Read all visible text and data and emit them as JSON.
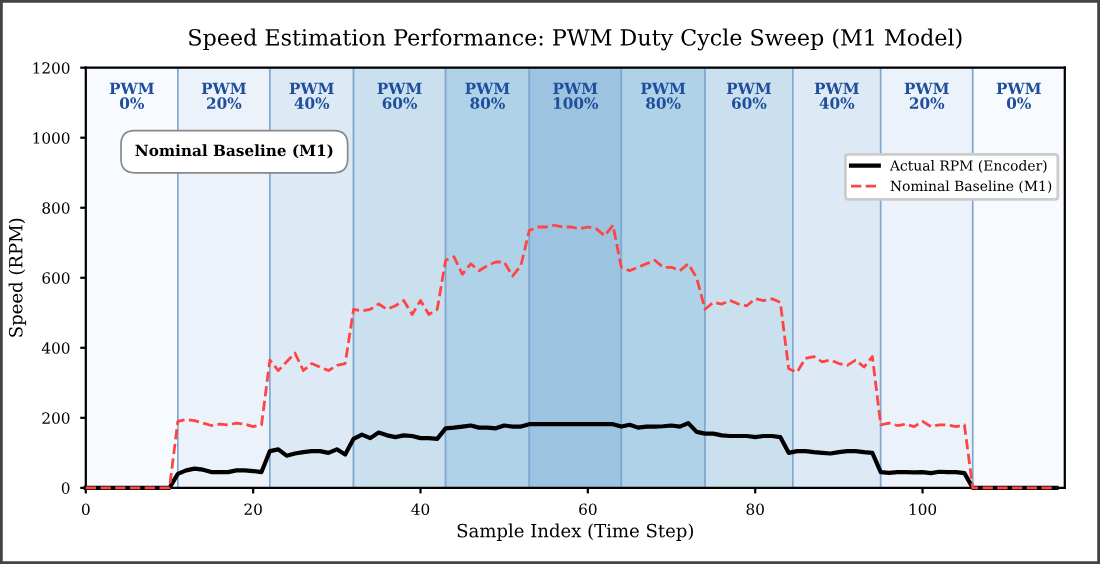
{
  "chart_data": {
    "type": "line",
    "title": "Speed Estimation Performance: PWM Duty Cycle Sweep (M1 Model)",
    "xlabel": "Sample Index (Time Step)",
    "ylabel": "Speed (RPM)",
    "x": [
      0,
      1,
      2,
      3,
      4,
      5,
      6,
      7,
      8,
      9,
      10,
      11,
      12,
      13,
      14,
      15,
      16,
      17,
      18,
      19,
      20,
      21,
      22,
      23,
      24,
      25,
      26,
      27,
      28,
      29,
      30,
      31,
      32,
      33,
      34,
      35,
      36,
      37,
      38,
      39,
      40,
      41,
      42,
      43,
      44,
      45,
      46,
      47,
      48,
      49,
      50,
      51,
      52,
      53,
      54,
      55,
      56,
      57,
      58,
      59,
      60,
      61,
      62,
      63,
      64,
      65,
      66,
      67,
      68,
      69,
      70,
      71,
      72,
      73,
      74,
      75,
      76,
      77,
      78,
      79,
      80,
      81,
      82,
      83,
      84,
      85,
      86,
      87,
      88,
      89,
      90,
      91,
      92,
      93,
      94,
      95,
      96,
      97,
      98,
      99,
      100,
      101,
      102,
      103,
      104,
      105,
      106,
      107,
      108,
      109,
      110,
      111,
      112,
      113,
      114,
      115,
      116
    ],
    "series": [
      {
        "name": "Actual RPM (Encoder)",
        "color": "#000000",
        "line_style": "solid",
        "values": [
          0,
          0,
          0,
          0,
          0,
          0,
          0,
          0,
          0,
          0,
          0,
          40,
          50,
          55,
          52,
          45,
          45,
          45,
          50,
          50,
          48,
          45,
          105,
          110,
          92,
          98,
          102,
          105,
          105,
          100,
          110,
          95,
          140,
          152,
          142,
          158,
          150,
          145,
          150,
          148,
          142,
          142,
          140,
          170,
          172,
          175,
          178,
          172,
          172,
          170,
          178,
          175,
          175,
          182,
          182,
          182,
          182,
          182,
          182,
          182,
          182,
          182,
          182,
          182,
          175,
          180,
          172,
          175,
          175,
          176,
          178,
          175,
          185,
          160,
          155,
          155,
          150,
          148,
          148,
          148,
          145,
          148,
          148,
          145,
          100,
          105,
          105,
          102,
          100,
          98,
          102,
          105,
          105,
          102,
          100,
          45,
          43,
          45,
          45,
          44,
          45,
          42,
          46,
          45,
          45,
          42,
          0,
          0,
          0,
          0,
          0,
          0,
          0,
          0,
          0,
          0,
          0
        ]
      },
      {
        "name": "Nominal Baseline (M1)",
        "color": "#ff4444",
        "line_style": "dashed",
        "values": [
          0,
          0,
          0,
          0,
          0,
          0,
          0,
          0,
          0,
          0,
          0,
          190,
          195,
          192,
          185,
          178,
          182,
          180,
          185,
          182,
          175,
          180,
          365,
          335,
          360,
          385,
          335,
          355,
          345,
          335,
          350,
          355,
          510,
          505,
          510,
          525,
          510,
          520,
          535,
          495,
          535,
          495,
          510,
          650,
          660,
          610,
          640,
          620,
          635,
          645,
          645,
          605,
          635,
          735,
          745,
          745,
          750,
          745,
          745,
          740,
          745,
          740,
          720,
          750,
          630,
          620,
          630,
          640,
          650,
          630,
          630,
          620,
          640,
          600,
          510,
          530,
          525,
          535,
          525,
          520,
          540,
          535,
          540,
          530,
          340,
          330,
          370,
          375,
          360,
          365,
          355,
          350,
          365,
          345,
          375,
          180,
          185,
          178,
          182,
          175,
          190,
          175,
          180,
          180,
          175,
          180,
          0,
          0,
          0,
          0,
          0,
          0,
          0,
          0,
          0,
          0,
          0
        ]
      }
    ],
    "bands": [
      {
        "axis": "x",
        "from": 0,
        "to": 11,
        "label": "PWM\n0%",
        "color": "#f7fbff"
      },
      {
        "axis": "x",
        "from": 11,
        "to": 22,
        "label": "PWM\n20%",
        "color": "#ebf2fa"
      },
      {
        "axis": "x",
        "from": 22,
        "to": 32,
        "label": "PWM\n40%",
        "color": "#dde9f5"
      },
      {
        "axis": "x",
        "from": 32,
        "to": 43,
        "label": "PWM\n60%",
        "color": "#cae0ef"
      },
      {
        "axis": "x",
        "from": 43,
        "to": 53,
        "label": "PWM\n80%",
        "color": "#b0d2e9"
      },
      {
        "axis": "x",
        "from": 53,
        "to": 64,
        "label": "PWM\n100%",
        "color": "#9cc3e0"
      },
      {
        "axis": "x",
        "from": 64,
        "to": 74,
        "label": "PWM\n80%",
        "color": "#b0d2e9"
      },
      {
        "axis": "x",
        "from": 74,
        "to": 84.5,
        "label": "PWM\n60%",
        "color": "#cae0ef"
      },
      {
        "axis": "x",
        "from": 84.5,
        "to": 95,
        "label": "PWM\n40%",
        "color": "#dde9f5"
      },
      {
        "axis": "x",
        "from": 95,
        "to": 106,
        "label": "PWM\n20%",
        "color": "#ebf2fa"
      },
      {
        "axis": "x",
        "from": 106,
        "to": 117,
        "label": "PWM\n0%",
        "color": "#f7fbff"
      }
    ],
    "annotations": [
      "Nominal Baseline (M1)"
    ],
    "xlim": [
      0,
      117
    ],
    "ylim": [
      0,
      1200
    ],
    "xticks": [
      0,
      20,
      40,
      60,
      80,
      100
    ],
    "yticks": [
      0,
      200,
      400,
      600,
      800,
      1000,
      1200
    ],
    "grid": false,
    "legend": "right"
  }
}
